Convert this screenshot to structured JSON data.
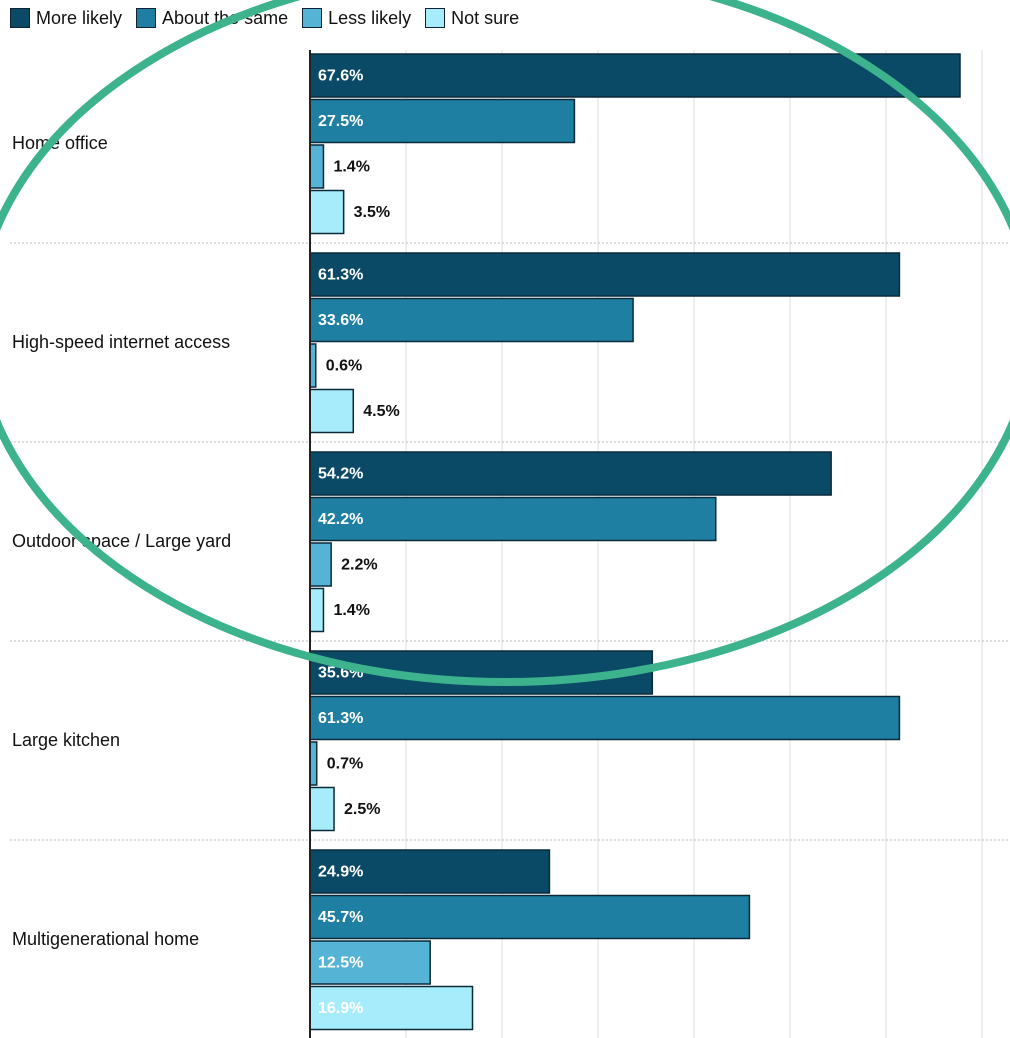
{
  "colors": {
    "more_likely": "#0b4a66",
    "about_same": "#1f7fa3",
    "less_likely": "#55b3d6",
    "not_sure": "#a7ecfb",
    "annotation_ellipse": "#3db38d"
  },
  "legend": [
    {
      "label": "More likely",
      "color": "#0b4a66"
    },
    {
      "label": "About the same",
      "color": "#1f7fa3"
    },
    {
      "label": "Less likely",
      "color": "#55b3d6"
    },
    {
      "label": "Not sure",
      "color": "#a7ecfb"
    }
  ],
  "chart_data": {
    "type": "bar",
    "orientation": "horizontal",
    "categories": [
      "Home office",
      "High-speed internet access",
      "Outdoor space / Large yard",
      "Large kitchen",
      "Multigenerational home"
    ],
    "series": [
      {
        "name": "More likely",
        "values": [
          67.6,
          61.3,
          54.2,
          35.6,
          24.9
        ],
        "labels": [
          "67.6%",
          "61.3%",
          "54.2%",
          "35.6%",
          "24.9%"
        ]
      },
      {
        "name": "About the same",
        "values": [
          27.5,
          33.6,
          42.2,
          61.3,
          45.7
        ],
        "labels": [
          "27.5%",
          "33.6%",
          "42.2%",
          "61.3%",
          "45.7%"
        ]
      },
      {
        "name": "Less likely",
        "values": [
          1.4,
          0.6,
          2.2,
          0.7,
          12.5
        ],
        "labels": [
          "1.4%",
          "0.6%",
          "2.2%",
          "0.7%",
          "12.5%"
        ]
      },
      {
        "name": "Not sure",
        "values": [
          3.5,
          4.5,
          1.4,
          2.5,
          16.9
        ],
        "labels": [
          "3.5%",
          "4.5%",
          "1.4%",
          "2.5%",
          "16.9%"
        ]
      }
    ],
    "xlim": [
      0,
      70
    ],
    "grid": true,
    "legend_position": "top-left",
    "annotation": "green ellipse circling the top three categories"
  }
}
